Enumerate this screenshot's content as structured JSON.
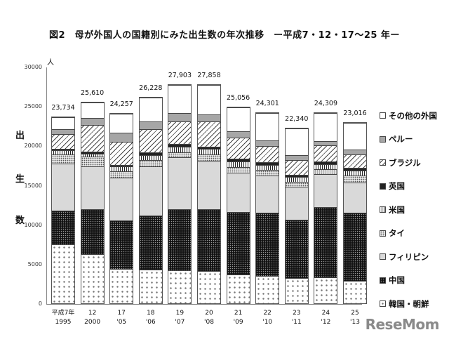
{
  "title": "図2　母が外国人の国籍別にみた出生数の年次推移　ー平成7・12・17〜25 年ー",
  "unit": "人",
  "ylabel_chars": [
    "出",
    "生",
    "数"
  ],
  "yticks": [
    "30000",
    "25000",
    "20000",
    "15000",
    "10000",
    "5000",
    "0"
  ],
  "watermark": "ReseMom",
  "legend": [
    {
      "label": "その他の外国",
      "key": "other"
    },
    {
      "label": "ペルー",
      "key": "peru"
    },
    {
      "label": "ブラジル",
      "key": "brazil"
    },
    {
      "label": "英国",
      "key": "uk"
    },
    {
      "label": "米国",
      "key": "us"
    },
    {
      "label": "タイ",
      "key": "thai"
    },
    {
      "label": "フィリピン",
      "key": "phil"
    },
    {
      "label": "中国",
      "key": "china"
    },
    {
      "label": "韓国・朝鮮",
      "key": "korea"
    }
  ],
  "chart_data": {
    "type": "bar",
    "stacked": true,
    "title": "図2　母が外国人の国籍別にみた出生数の年次推移　ー平成7・12・17〜25 年ー",
    "xlabel": "",
    "ylabel": "出生数（人）",
    "ylim": [
      0,
      30000
    ],
    "yticks": [
      0,
      5000,
      10000,
      15000,
      20000,
      25000,
      30000
    ],
    "legend_position": "right",
    "categories": [
      {
        "era": "平成7年",
        "year": "1995"
      },
      {
        "era": "12",
        "year": "2000"
      },
      {
        "era": "17",
        "year": "'05"
      },
      {
        "era": "18",
        "year": "'06"
      },
      {
        "era": "19",
        "year": "'07"
      },
      {
        "era": "20",
        "year": "'08"
      },
      {
        "era": "21",
        "year": "'09"
      },
      {
        "era": "22",
        "year": "'10"
      },
      {
        "era": "23",
        "year": "'11"
      },
      {
        "era": "24",
        "year": "'12"
      },
      {
        "era": "25",
        "year": "'13"
      }
    ],
    "totals": [
      23734,
      25610,
      24257,
      26228,
      27903,
      27858,
      25056,
      24301,
      22340,
      24309,
      23016
    ],
    "total_labels": [
      "23,734",
      "25,610",
      "24,257",
      "26,228",
      "27,903",
      "27,858",
      "25,056",
      "24,301",
      "22,340",
      "24,309",
      "23,016"
    ],
    "series": [
      {
        "name": "韓国・朝鮮",
        "key": "korea",
        "values": [
          7500,
          6300,
          4400,
          4300,
          4200,
          4100,
          3700,
          3500,
          3200,
          3300,
          2900
        ]
      },
      {
        "name": "中国",
        "key": "china",
        "values": [
          4350,
          5700,
          6150,
          6900,
          7800,
          7900,
          8000,
          8100,
          7500,
          9000,
          8700
        ]
      },
      {
        "name": "フィリピン",
        "key": "phil",
        "values": [
          6000,
          5500,
          5500,
          6300,
          6600,
          6200,
          5000,
          4700,
          4200,
          4200,
          3800
        ]
      },
      {
        "name": "タイ",
        "key": "thai",
        "values": [
          1200,
          1200,
          800,
          800,
          700,
          800,
          700,
          700,
          600,
          600,
          900
        ]
      },
      {
        "name": "米国",
        "key": "us",
        "values": [
          500,
          400,
          600,
          650,
          700,
          700,
          700,
          700,
          650,
          700,
          700
        ]
      },
      {
        "name": "英国",
        "key": "uk",
        "values": [
          200,
          250,
          250,
          300,
          350,
          300,
          350,
          300,
          300,
          350,
          300
        ]
      },
      {
        "name": "ブラジル",
        "key": "brazil",
        "values": [
          1900,
          3400,
          2900,
          3000,
          2900,
          3200,
          2700,
          2100,
          1900,
          2000,
          1700
        ]
      },
      {
        "name": "ペルー",
        "key": "peru",
        "values": [
          600,
          900,
          1200,
          1000,
          1000,
          900,
          800,
          700,
          600,
          600,
          650
        ]
      },
      {
        "name": "その他の外国",
        "key": "other",
        "values": [
          1484,
          1960,
          2457,
          2978,
          3653,
          3758,
          3106,
          3501,
          3390,
          3559,
          3366
        ]
      }
    ]
  }
}
